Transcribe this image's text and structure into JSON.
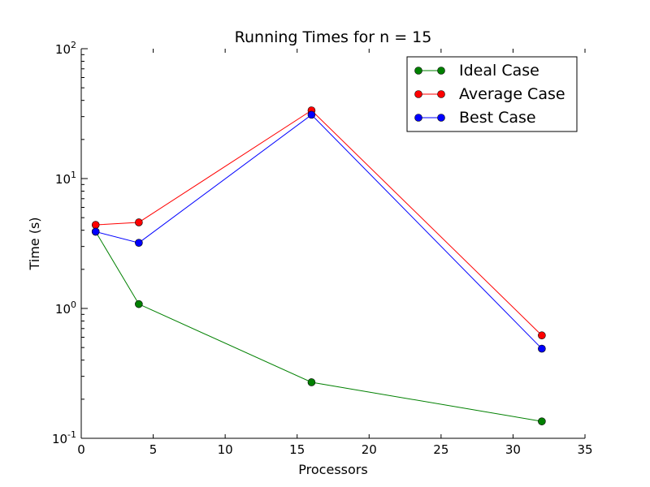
{
  "chart_data": {
    "type": "line",
    "title": "Running Times for n = 15",
    "xlabel": "Processors",
    "ylabel": "Time (s)",
    "xlim": [
      0,
      35
    ],
    "ylim": [
      0.1,
      100
    ],
    "yscale": "log",
    "grid": false,
    "legend_position": "top-right",
    "x_ticks": [
      "0",
      "5",
      "10",
      "15",
      "20",
      "25",
      "30",
      "35"
    ],
    "y_ticks": [
      {
        "value": 0.1,
        "base": "10",
        "exp": "-1"
      },
      {
        "value": 1,
        "base": "10",
        "exp": "0"
      },
      {
        "value": 10,
        "base": "10",
        "exp": "1"
      },
      {
        "value": 100,
        "base": "10",
        "exp": "2"
      }
    ],
    "x": [
      1,
      4,
      16,
      32
    ],
    "series": [
      {
        "name": "Ideal Case",
        "color": "#008000",
        "values": [
          3.9,
          1.08,
          0.27,
          0.135
        ]
      },
      {
        "name": "Average Case",
        "color": "#ff0000",
        "values": [
          4.4,
          4.6,
          33.5,
          0.62
        ]
      },
      {
        "name": "Best Case",
        "color": "#0000ff",
        "values": [
          3.9,
          3.2,
          31,
          0.49
        ]
      }
    ]
  }
}
